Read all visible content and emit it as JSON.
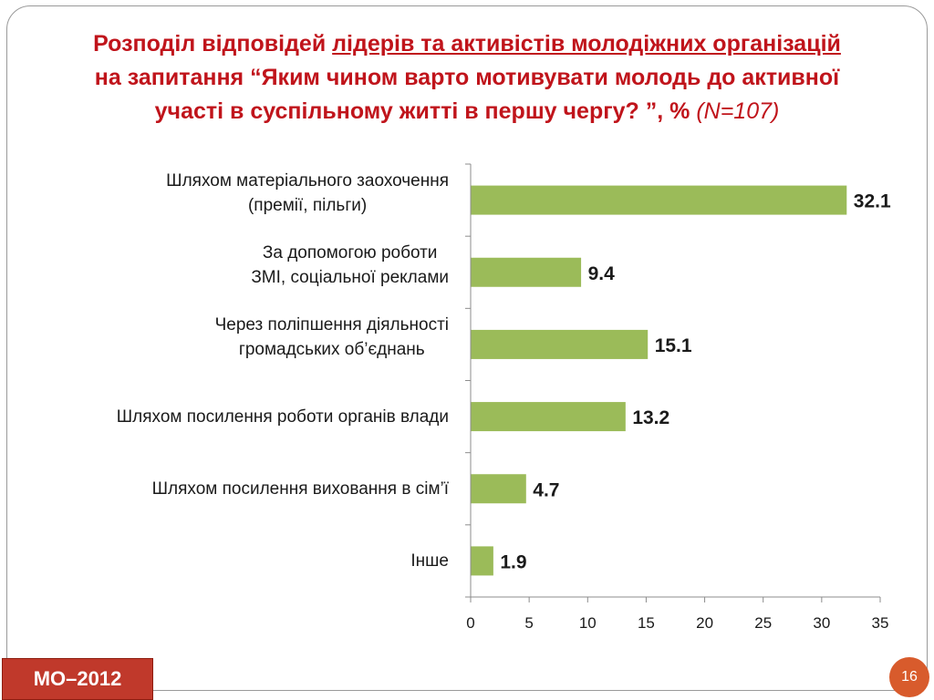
{
  "title": {
    "line1_prefix": "Розподіл відповідей ",
    "line1_underlined": "лідерів та активістів молодіжних організацій",
    "line2": "на запитання “Яким чином варто мотивувати молодь до активної",
    "line3_main": "участі в суспільному житті  в першу чергу? ”,  % ",
    "line3_n": "(N=107)"
  },
  "chart_data": {
    "type": "bar",
    "orientation": "horizontal",
    "categories": [
      [
        "Шляхом матеріального заохочення",
        "(премії, пільги)"
      ],
      [
        "За допомогою роботи",
        "ЗМІ, соціальної реклами"
      ],
      [
        "Через поліпшення діяльності",
        "громадських об’єднань"
      ],
      [
        "Шляхом посилення роботи органів влади"
      ],
      [
        "Шляхом посилення виховання в сім’ї"
      ],
      [
        "Інше"
      ]
    ],
    "values": [
      32.1,
      9.4,
      15.1,
      13.2,
      4.7,
      1.9
    ],
    "data_labels": [
      "32.1",
      "9.4",
      "15.1",
      "13.2",
      "4.7",
      "1.9"
    ],
    "xlim": [
      0,
      35
    ],
    "x_ticks": [
      0,
      5,
      10,
      15,
      20,
      25,
      30,
      35
    ],
    "x_tick_labels": [
      "0",
      "5",
      "10",
      "15",
      "20",
      "25",
      "30",
      "35"
    ],
    "bar_color": "#9bbb59",
    "grid": false,
    "legend": "none"
  },
  "footer": {
    "badge": "МО–2012",
    "badge_color": "#c0392b",
    "page_number": "16",
    "page_number_color": "#d85b2c"
  },
  "colors": {
    "title": "#c0141b",
    "axis": "#8c8c8c",
    "text": "#1a1a1a"
  }
}
